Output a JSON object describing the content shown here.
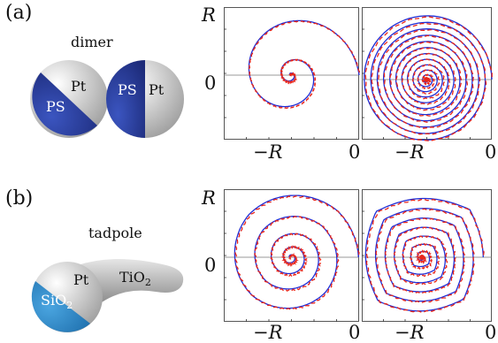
{
  "panel_a": {
    "label": "(a)",
    "caption": "dimer",
    "particle_left_labels": [
      "Pt",
      "PS"
    ],
    "particle_right_labels": [
      "PS",
      "Pt"
    ],
    "axis": {
      "y_label": "R",
      "y_zero": "0",
      "x_label": "−R",
      "x_zero": "0",
      "x_label2": "−R",
      "x_zero2": "0"
    }
  },
  "panel_b": {
    "label": "(b)",
    "caption": "tadpole",
    "labels": {
      "pt": "Pt",
      "tio2": "TiO",
      "tio2_sub": "2",
      "sio2": "SiO",
      "sio2_sub": "2"
    },
    "axis": {
      "y_label": "R",
      "y_zero": "0",
      "x_label": "−R",
      "x_zero": "0",
      "x_label2": "−R",
      "x_zero2": "0"
    }
  },
  "colors": {
    "blue_curve": "#1f2dd6",
    "red_curve": "#e8261b",
    "ps_blue": "#2a3d9a",
    "sio2_blue": "#2a8fd0",
    "pt_gray": "#d8d8d8"
  },
  "chart_data": [
    {
      "type": "line",
      "title": "",
      "xlabel": "",
      "ylabel": "",
      "xlim": [
        -1,
        0
      ],
      "ylim": [
        -1,
        1
      ],
      "series": [
        {
          "values": []
        },
        {
          "values": []
        }
      ]
    },
    {
      "type": "line",
      "title": "",
      "xlabel": "",
      "ylabel": "",
      "xlim": [
        -1,
        0
      ],
      "ylim": [
        -1,
        1
      ],
      "series": [
        {
          "values": []
        },
        {
          "values": []
        }
      ]
    },
    {
      "type": "line",
      "title": "",
      "xlabel": "",
      "ylabel": "",
      "xlim": [
        -1,
        0
      ],
      "ylim": [
        -1,
        1
      ],
      "series": [
        {
          "values": []
        },
        {
          "values": []
        }
      ]
    },
    {
      "type": "line",
      "title": "",
      "xlabel": "",
      "ylabel": "",
      "xlim": [
        -1,
        0
      ],
      "ylim": [
        -1,
        1
      ],
      "series": [
        {
          "values": []
        },
        {
          "values": []
        }
      ]
    }
  ]
}
